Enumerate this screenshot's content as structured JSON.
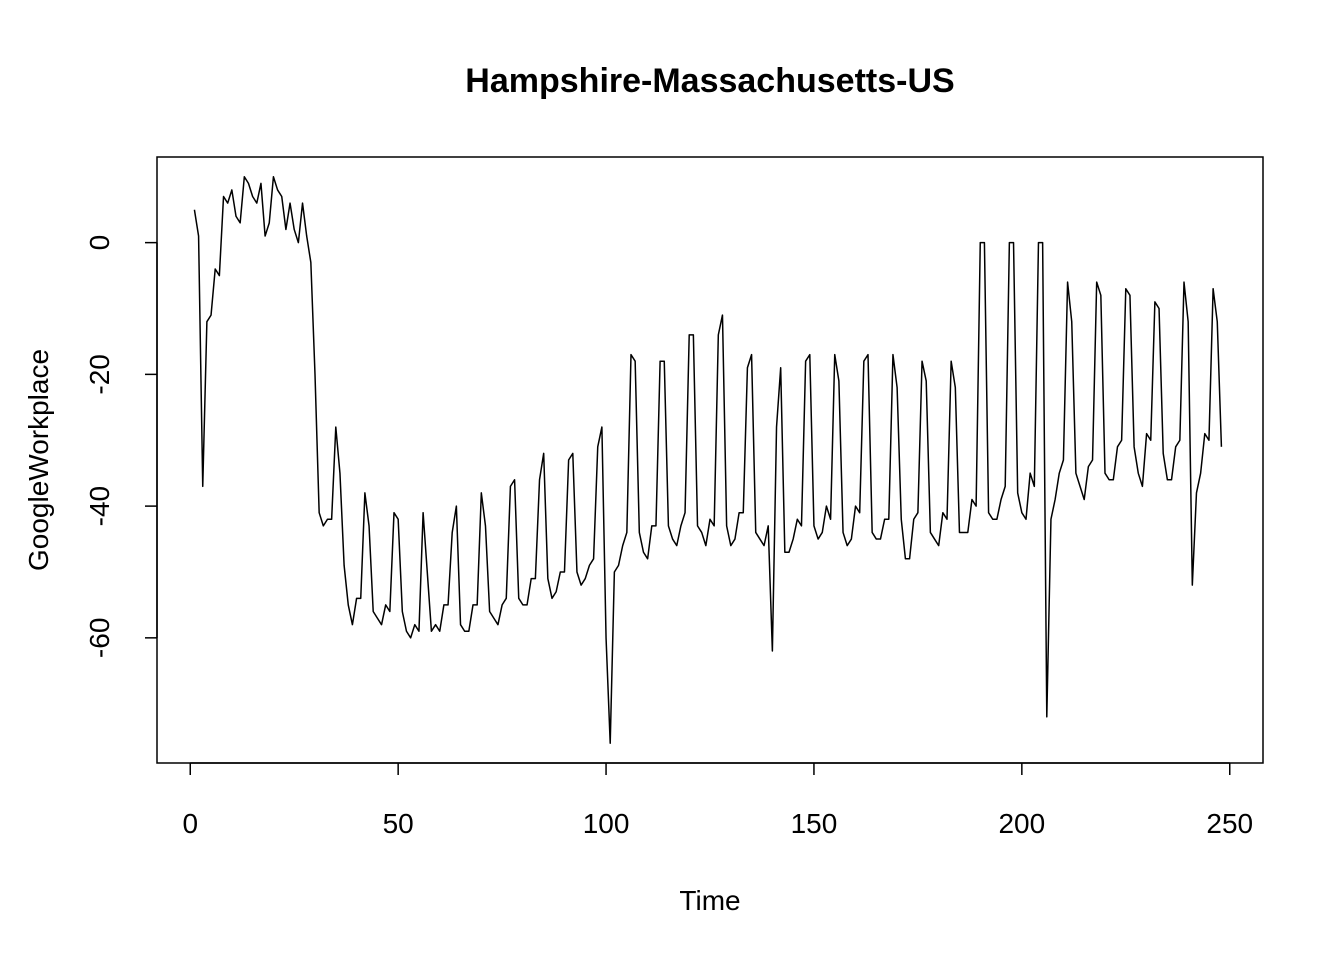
{
  "chart_data": {
    "type": "line",
    "title": "Hampshire-Massachusetts-US",
    "xlabel": "Time",
    "ylabel": "GoogleWorkplace",
    "xlim": [
      -8,
      258
    ],
    "ylim": [
      -79,
      13
    ],
    "xticks": [
      0,
      50,
      100,
      150,
      200,
      250
    ],
    "yticks": [
      -60,
      -40,
      -20,
      0
    ],
    "grid": false,
    "legend": "none",
    "line_color": "#000000",
    "series": [
      {
        "values": [
          5,
          1,
          -37,
          -12,
          -11,
          -4,
          -5,
          7,
          6,
          8,
          4,
          3,
          10,
          9,
          7,
          6,
          9,
          1,
          3,
          10,
          8,
          7,
          2,
          6,
          2,
          0,
          6,
          1,
          -3,
          -20,
          -41,
          -43,
          -42,
          -42,
          -28,
          -35,
          -49,
          -55,
          -58,
          -54,
          -54,
          -38,
          -43,
          -56,
          -57,
          -58,
          -55,
          -56,
          -41,
          -42,
          -56,
          -59,
          -60,
          -58,
          -59,
          -41,
          -50,
          -59,
          -58,
          -59,
          -55,
          -55,
          -44,
          -40,
          -58,
          -59,
          -59,
          -55,
          -55,
          -38,
          -43,
          -56,
          -57,
          -58,
          -55,
          -54,
          -37,
          -36,
          -54,
          -55,
          -55,
          -51,
          -51,
          -36,
          -32,
          -51,
          -54,
          -53,
          -50,
          -50,
          -33,
          -32,
          -50,
          -52,
          -51,
          -49,
          -48,
          -31,
          -28,
          -60,
          -76,
          -50,
          -49,
          -46,
          -44,
          -17,
          -18,
          -44,
          -47,
          -48,
          -43,
          -43,
          -18,
          -18,
          -43,
          -45,
          -46,
          -43,
          -41,
          -14,
          -14,
          -43,
          -44,
          -46,
          -42,
          -43,
          -14,
          -11,
          -43,
          -46,
          -45,
          -41,
          -41,
          -19,
          -17,
          -44,
          -45,
          -46,
          -43,
          -62,
          -28,
          -19,
          -47,
          -47,
          -45,
          -42,
          -43,
          -18,
          -17,
          -43,
          -45,
          -44,
          -40,
          -42,
          -17,
          -21,
          -44,
          -46,
          -45,
          -40,
          -41,
          -18,
          -17,
          -44,
          -45,
          -45,
          -42,
          -42,
          -17,
          -22,
          -42,
          -48,
          -48,
          -42,
          -41,
          -18,
          -21,
          -44,
          -45,
          -46,
          -41,
          -42,
          -18,
          -22,
          -44,
          -44,
          -44,
          -39,
          -40,
          0,
          0,
          -41,
          -42,
          -42,
          -39,
          -37,
          0,
          0,
          -38,
          -41,
          -42,
          -35,
          -37,
          0,
          0,
          -72,
          -42,
          -39,
          -35,
          -33,
          -6,
          -12,
          -35,
          -37,
          -39,
          -34,
          -33,
          -6,
          -8,
          -35,
          -36,
          -36,
          -31,
          -30,
          -7,
          -8,
          -31,
          -35,
          -37,
          -29,
          -30,
          -9,
          -10,
          -32,
          -36,
          -36,
          -31,
          -30,
          -6,
          -12,
          -52,
          -38,
          -35,
          -29,
          -30,
          -7,
          -12,
          -31
        ]
      }
    ]
  }
}
